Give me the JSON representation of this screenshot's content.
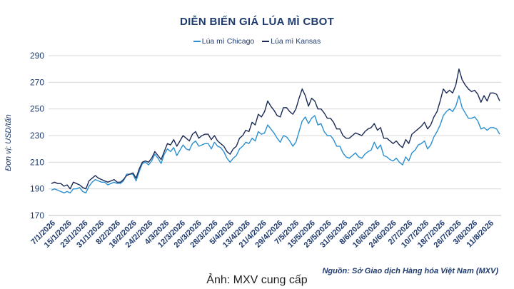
{
  "caption": "Ảnh: MXV cung cấp",
  "chart_data": {
    "type": "line",
    "title": "DIỄN BIẾN GIÁ LÚA MÌ CBOT",
    "ylabel": "Đơn vị: USD/tấn",
    "source": "Nguồn: Sở Giao dịch Hàng hóa Việt Nam (MXV)",
    "ylim": [
      170,
      290
    ],
    "yticks": [
      170,
      190,
      210,
      230,
      250,
      270,
      290
    ],
    "grid": "horizontal",
    "legend": "top-center",
    "xticks": [
      "7/1/2026",
      "15/1/2026",
      "23/1/2026",
      "31/1/2026",
      "8/2/2026",
      "16/2/2026",
      "24/2/2026",
      "4/3/2026",
      "12/3/2026",
      "20/3/2026",
      "28/3/2026",
      "5/4/2026",
      "13/4/2026",
      "21/4/2026",
      "29/4/2026",
      "7/5/2026",
      "15/5/2026",
      "23/5/2026",
      "31/5/2026",
      "8/6/2026",
      "16/6/2026",
      "24/6/2026",
      "2/7/2026",
      "10/7/2026",
      "18/7/2026",
      "26/7/2026",
      "3/8/2026",
      "11/8/2026"
    ],
    "series": [
      {
        "name": "Lúa mì Chicago",
        "color": "#2a8fd0",
        "values": [
          189,
          190,
          189,
          188,
          187,
          188,
          187,
          190,
          190,
          191,
          188,
          187,
          192,
          195,
          197,
          196,
          195,
          195,
          193,
          194,
          195,
          194,
          194,
          196,
          201,
          201,
          201,
          196,
          203,
          209,
          210,
          208,
          211,
          216,
          213,
          209,
          216,
          220,
          218,
          221,
          215,
          219,
          223,
          220,
          219,
          224,
          226,
          222,
          223,
          224,
          224,
          220,
          225,
          222,
          221,
          218,
          213,
          210,
          213,
          215,
          220,
          222,
          225,
          224,
          228,
          226,
          233,
          231,
          232,
          238,
          235,
          232,
          228,
          225,
          230,
          229,
          226,
          222,
          225,
          233,
          241,
          244,
          239,
          243,
          245,
          238,
          239,
          233,
          230,
          230,
          227,
          222,
          222,
          217,
          214,
          213,
          215,
          217,
          214,
          213,
          216,
          218,
          219,
          225,
          220,
          223,
          215,
          214,
          212,
          211,
          213,
          210,
          208,
          214,
          211,
          217,
          219,
          223,
          224,
          226,
          220,
          223,
          229,
          233,
          238,
          245,
          248,
          250,
          248,
          252,
          260,
          251,
          247,
          243,
          243,
          244,
          241,
          235,
          236,
          234,
          236,
          236,
          235,
          231
        ]
      },
      {
        "name": "Lúa mì Kansas",
        "color": "#1b2a55",
        "values": [
          194,
          195,
          194,
          194,
          192,
          193,
          190,
          195,
          194,
          193,
          191,
          190,
          196,
          198,
          200,
          198,
          197,
          196,
          195,
          196,
          197,
          195,
          195,
          197,
          200,
          201,
          202,
          198,
          205,
          210,
          211,
          210,
          213,
          218,
          215,
          212,
          218,
          224,
          223,
          227,
          222,
          226,
          230,
          228,
          226,
          231,
          233,
          228,
          230,
          231,
          231,
          227,
          230,
          226,
          224,
          222,
          218,
          216,
          220,
          222,
          228,
          230,
          234,
          233,
          240,
          238,
          246,
          244,
          248,
          256,
          252,
          249,
          245,
          244,
          251,
          251,
          248,
          246,
          250,
          258,
          265,
          260,
          252,
          258,
          256,
          250,
          250,
          247,
          243,
          243,
          240,
          235,
          235,
          230,
          228,
          228,
          230,
          232,
          231,
          230,
          233,
          235,
          236,
          239,
          234,
          236,
          228,
          228,
          226,
          224,
          226,
          223,
          221,
          227,
          224,
          231,
          233,
          235,
          237,
          240,
          235,
          238,
          244,
          248,
          256,
          265,
          262,
          264,
          262,
          268,
          280,
          272,
          268,
          265,
          263,
          264,
          261,
          255,
          260,
          256,
          262,
          262,
          261,
          256
        ]
      }
    ]
  }
}
